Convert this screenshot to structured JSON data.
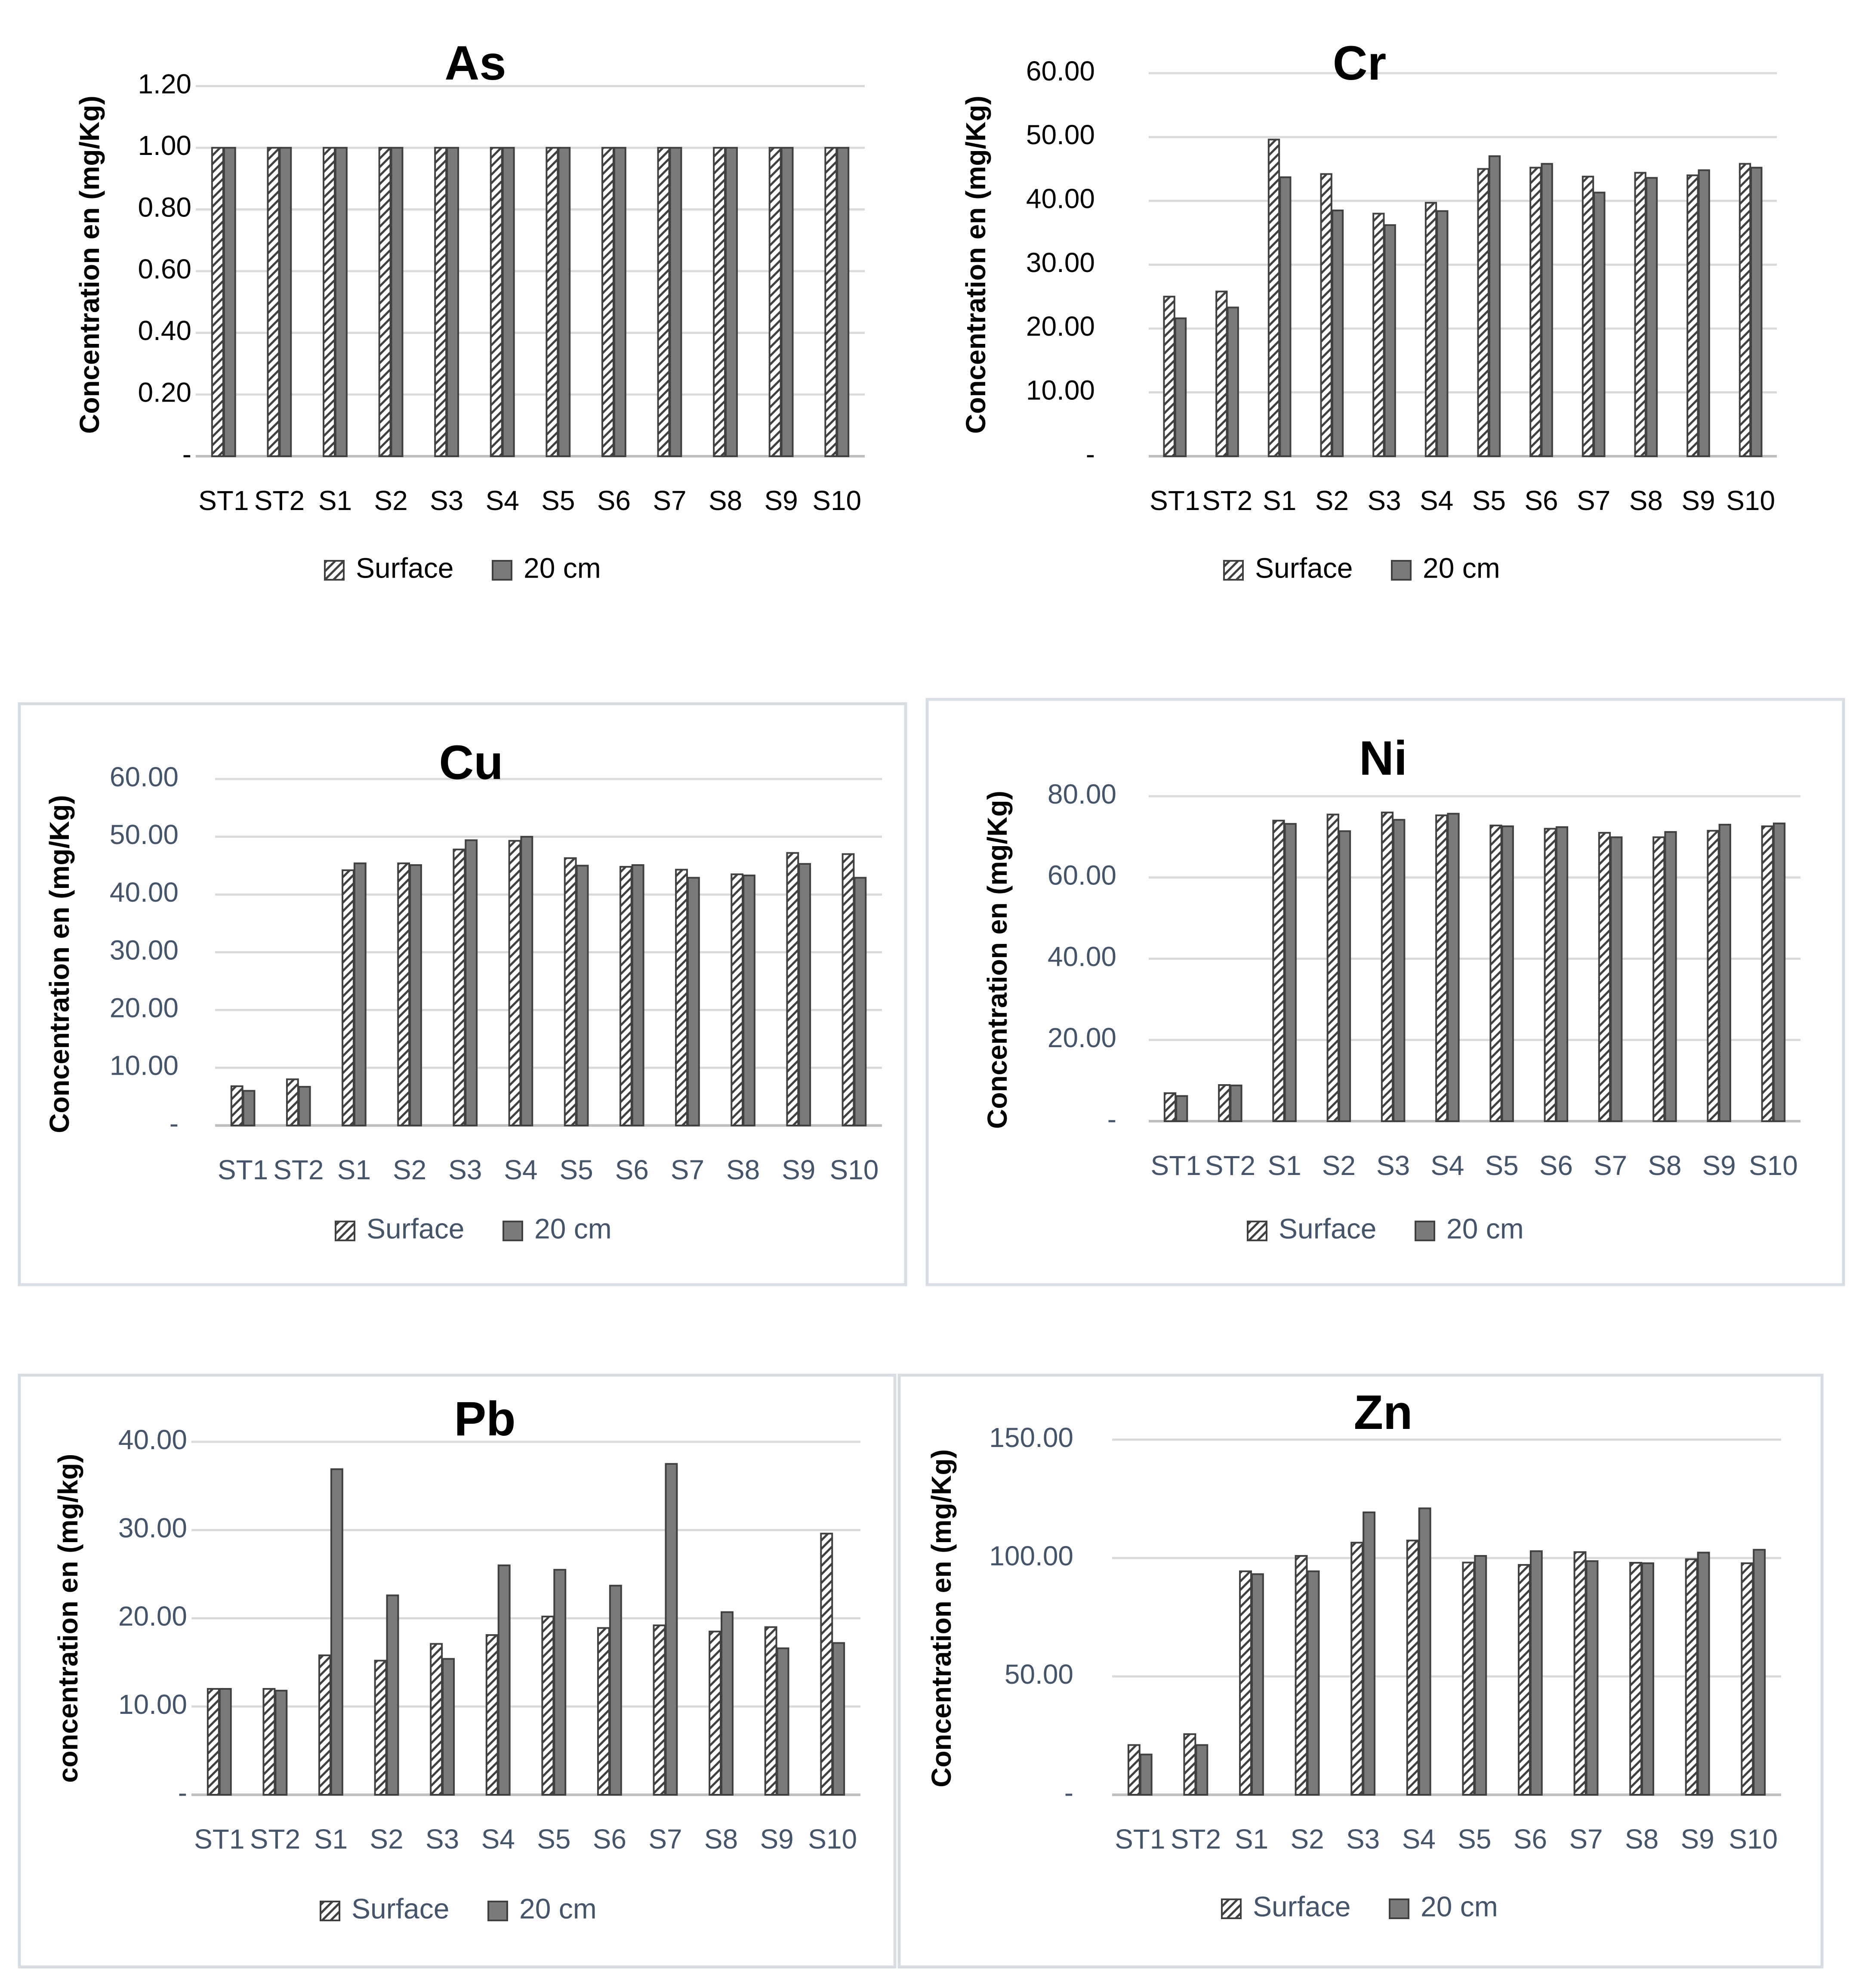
{
  "colors": {
    "surface_fill": "#ffffff",
    "depth_fill": "#7a7a7a",
    "bar_outline": "#404040",
    "tick_text_dark": "#000000",
    "tick_text_blue": "#44546a",
    "gridline": "#d9d9d9"
  },
  "legend": {
    "surface_label": "Surface",
    "depth_label": "20 cm"
  },
  "chart_data": [
    {
      "type": "bar",
      "title": "As",
      "ylabel": "Concentration en (mg/Kg)",
      "xlabel": "",
      "categories": [
        "ST1",
        "ST2",
        "S1",
        "S2",
        "S3",
        "S4",
        "S5",
        "S6",
        "S7",
        "S8",
        "S9",
        "S10"
      ],
      "yticks": [
        "-",
        "0.20",
        "0.40",
        "0.60",
        "0.80",
        "1.00",
        "1.20"
      ],
      "ylim": [
        0,
        1.2
      ],
      "series": [
        {
          "name": "Surface",
          "values": [
            1,
            1,
            1,
            1,
            1,
            1,
            1,
            1,
            1,
            1,
            1,
            1
          ]
        },
        {
          "name": "20 cm",
          "values": [
            1,
            1,
            1,
            1,
            1,
            1,
            1,
            1,
            1,
            1,
            1,
            1
          ]
        }
      ],
      "legend_position": "bottom"
    },
    {
      "type": "bar",
      "title": "Cr",
      "ylabel": "Concentration en (mg/Kg)",
      "xlabel": "",
      "categories": [
        "ST1",
        "ST2",
        "S1",
        "S2",
        "S3",
        "S4",
        "S5",
        "S6",
        "S7",
        "S8",
        "S9",
        "S10"
      ],
      "yticks": [
        "-",
        "10.00",
        "20.00",
        "30.00",
        "40.00",
        "50.00",
        "60.00"
      ],
      "ylim": [
        0,
        60
      ],
      "series": [
        {
          "name": "Surface",
          "values": [
            25,
            25.8,
            49.6,
            44.2,
            38,
            39.7,
            45,
            45.2,
            43.8,
            44.4,
            44,
            45.8
          ]
        },
        {
          "name": "20 cm",
          "values": [
            21.6,
            23.3,
            43.7,
            38.5,
            36.2,
            38.4,
            47,
            45.8,
            41.3,
            43.6,
            44.8,
            45.2
          ]
        }
      ],
      "legend_position": "bottom"
    },
    {
      "type": "bar",
      "title": "Cu",
      "ylabel": "Concentration en (mg/Kg)",
      "xlabel": "",
      "categories": [
        "ST1",
        "ST2",
        "S1",
        "S2",
        "S3",
        "S4",
        "S5",
        "S6",
        "S7",
        "S8",
        "S9",
        "S10"
      ],
      "yticks": [
        "-",
        "10.00",
        "20.00",
        "30.00",
        "40.00",
        "50.00",
        "60.00"
      ],
      "ylim": [
        0,
        60
      ],
      "series": [
        {
          "name": "Surface",
          "values": [
            6.8,
            8,
            44.2,
            45.4,
            47.8,
            49.3,
            46.3,
            44.8,
            44.3,
            43.5,
            47.2,
            47
          ]
        },
        {
          "name": "20 cm",
          "values": [
            6,
            6.7,
            45.4,
            45.1,
            49.4,
            50,
            45,
            45.1,
            42.9,
            43.3,
            45.3,
            42.9
          ]
        }
      ],
      "legend_position": "bottom"
    },
    {
      "type": "bar",
      "title": "Ni",
      "ylabel": "Concentration en (mg/Kg)",
      "xlabel": "",
      "categories": [
        "ST1",
        "ST2",
        "S1",
        "S2",
        "S3",
        "S4",
        "S5",
        "S6",
        "S7",
        "S8",
        "S9",
        "S10"
      ],
      "yticks": [
        "-",
        "20.00",
        "40.00",
        "60.00",
        "80.00"
      ],
      "ylim": [
        0,
        80
      ],
      "series": [
        {
          "name": "Surface",
          "values": [
            6.9,
            8.9,
            74,
            75.5,
            76,
            75.3,
            72.8,
            72,
            71,
            69.9,
            71.5,
            72.6
          ]
        },
        {
          "name": "20 cm",
          "values": [
            6.2,
            8.8,
            73.2,
            71.4,
            74.2,
            75.7,
            72.6,
            72.4,
            69.9,
            71.2,
            73,
            73.3
          ]
        }
      ],
      "legend_position": "bottom"
    },
    {
      "type": "bar",
      "title": "Pb",
      "ylabel": "concentration en (mg/kg)",
      "xlabel": "",
      "categories": [
        "ST1",
        "ST2",
        "S1",
        "S2",
        "S3",
        "S4",
        "S5",
        "S6",
        "S7",
        "S8",
        "S9",
        "S10"
      ],
      "yticks": [
        "-",
        "10.00",
        "20.00",
        "30.00",
        "40.00"
      ],
      "ylim": [
        0,
        40
      ],
      "series": [
        {
          "name": "Surface",
          "values": [
            12,
            12,
            15.8,
            15.2,
            17.1,
            18.1,
            20.2,
            18.9,
            19.2,
            18.5,
            19,
            29.6
          ]
        },
        {
          "name": "20 cm",
          "values": [
            12,
            11.8,
            36.9,
            22.6,
            15.4,
            26,
            25.5,
            23.7,
            37.5,
            20.7,
            16.6,
            17.2
          ]
        }
      ],
      "legend_position": "bottom"
    },
    {
      "type": "bar",
      "title": "Zn",
      "ylabel": "Concentration en (mg/Kg)",
      "xlabel": "",
      "categories": [
        "ST1",
        "ST2",
        "S1",
        "S2",
        "S3",
        "S4",
        "S5",
        "S6",
        "S7",
        "S8",
        "S9",
        "S10"
      ],
      "yticks": [
        "-",
        "50.00",
        "100.00",
        "150.00"
      ],
      "ylim": [
        0,
        150
      ],
      "series": [
        {
          "name": "Surface",
          "values": [
            21,
            25.6,
            94.4,
            100.9,
            106.5,
            107.4,
            98.1,
            97.1,
            102.5,
            98,
            99.5,
            97.8
          ]
        },
        {
          "name": "20 cm",
          "values": [
            17,
            21,
            93.2,
            94.4,
            119.3,
            121,
            100.9,
            102.9,
            98.7,
            97.8,
            102.3,
            103.5
          ]
        }
      ],
      "legend_position": "bottom"
    }
  ]
}
